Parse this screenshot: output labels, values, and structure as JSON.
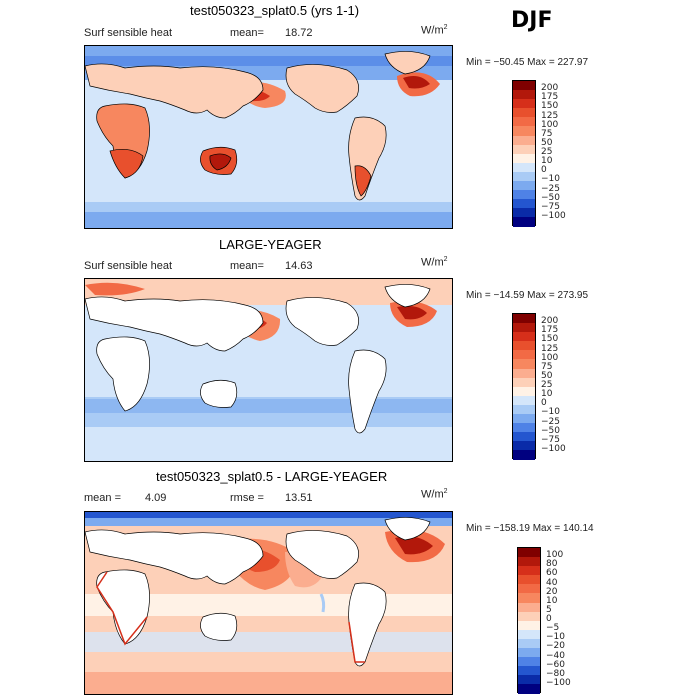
{
  "season": "DJF",
  "panels": [
    {
      "title": "test050323_splat0.5 (yrs 1-1)",
      "left_label": "Surf sensible heat",
      "stat_label": "mean=",
      "stat_value": "18.72",
      "units": "W/m",
      "units_sup": "2",
      "minmax": "Min = −50.45 Max = 227.97",
      "colorbar_labels": [
        "200",
        "175",
        "150",
        "125",
        "100",
        "75",
        "50",
        "25",
        "10",
        "0",
        "−10",
        "−25",
        "−50",
        "−75",
        "−100"
      ]
    },
    {
      "title": "LARGE-YEAGER",
      "left_label": "Surf sensible heat",
      "stat_label": "mean=",
      "stat_value": "14.63",
      "units": "W/m",
      "units_sup": "2",
      "minmax": "Min = −14.59 Max = 273.95",
      "colorbar_labels": [
        "200",
        "175",
        "150",
        "125",
        "100",
        "75",
        "50",
        "25",
        "10",
        "0",
        "−10",
        "−25",
        "−50",
        "−75",
        "−100"
      ]
    },
    {
      "title": "test050323_splat0.5 - LARGE-YEAGER",
      "left_label": "mean =",
      "left_value": "4.09",
      "stat_label": "rmse =",
      "stat_value": "13.51",
      "units": "W/m",
      "units_sup": "2",
      "minmax": "Min = −158.19 Max = 140.14",
      "colorbar_labels": [
        "100",
        "80",
        "60",
        "40",
        "20",
        "10",
        "5",
        "0",
        "−5",
        "−10",
        "−20",
        "−40",
        "−60",
        "−80",
        "−100"
      ]
    }
  ],
  "colors": {
    "scale": [
      "#7f0000",
      "#b2180b",
      "#d62f1a",
      "#e8502d",
      "#f26a45",
      "#f7875f",
      "#fbad8f",
      "#fdd0b8",
      "#fff2e6",
      "#d4e6fa",
      "#a9cbf5",
      "#7caaef",
      "#4f82e6",
      "#2456cf",
      "#0a2ba8",
      "#000080"
    ],
    "land": "#ffffff",
    "coast": "#000000"
  },
  "chart_data": [
    {
      "type": "heatmap",
      "title": "test050323_splat0.5 (yrs 1-1)",
      "variable": "Surf sensible heat",
      "units": "W/m2",
      "mean": 18.72,
      "min": -50.45,
      "max": 227.97,
      "levels": [
        -100,
        -75,
        -50,
        -25,
        -10,
        0,
        10,
        25,
        50,
        75,
        100,
        125,
        150,
        175,
        200
      ],
      "ocean_value": 5,
      "land_value": 40
    },
    {
      "type": "heatmap",
      "title": "LARGE-YEAGER",
      "variable": "Surf sensible heat",
      "units": "W/m2",
      "mean": 14.63,
      "min": -14.59,
      "max": 273.95,
      "levels": [
        -100,
        -75,
        -50,
        -25,
        -10,
        0,
        10,
        25,
        50,
        75,
        100,
        125,
        150,
        175,
        200
      ],
      "ocean_value": 8,
      "land_value": null
    },
    {
      "type": "heatmap",
      "title": "test050323_splat0.5 - LARGE-YEAGER",
      "units": "W/m2",
      "mean": 4.09,
      "rmse": 13.51,
      "min": -158.19,
      "max": 140.14,
      "levels": [
        -100,
        -80,
        -60,
        -40,
        -20,
        -10,
        -5,
        0,
        5,
        10,
        20,
        40,
        60,
        80,
        100
      ],
      "ocean_value": 3,
      "land_value": null
    }
  ]
}
